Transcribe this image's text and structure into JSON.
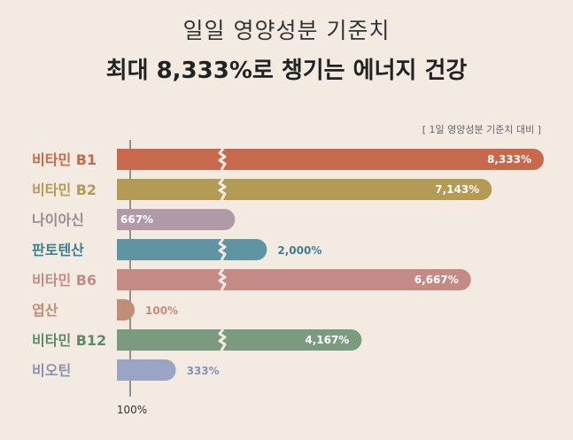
{
  "header": {
    "title_line1": "일일 영양성분 기준치",
    "title_line2": "최대 8,333%로 챙기는 에너지 건강"
  },
  "note": "[ 1일 영양성분 기준치 대비 ]",
  "chart_data": {
    "type": "bar",
    "orientation": "horizontal",
    "categories": [
      "비타민 B1",
      "비타민 B2",
      "나이아신",
      "판토텐산",
      "비타민 B6",
      "엽산",
      "비타민 B12",
      "비오틴"
    ],
    "values": [
      8333,
      7143,
      667,
      2000,
      6667,
      100,
      4167,
      333
    ],
    "value_labels": [
      "8,333%",
      "7,143%",
      "667%",
      "2,000%",
      "6,667%",
      "100%",
      "4,167%",
      "333%"
    ],
    "colors": [
      "#c8694d",
      "#b39a55",
      "#b09aa6",
      "#5f95a3",
      "#c48a86",
      "#bf8e76",
      "#7b9a80",
      "#9aa4c4"
    ],
    "label_colors": [
      "#c8694d",
      "#b39a55",
      "#9a8a94",
      "#3f7f8e",
      "#c48a86",
      "#bf8e76",
      "#5f8a69",
      "#8a90b2"
    ],
    "axis_break": true,
    "reference_line_label": "100%",
    "unit": "%"
  }
}
